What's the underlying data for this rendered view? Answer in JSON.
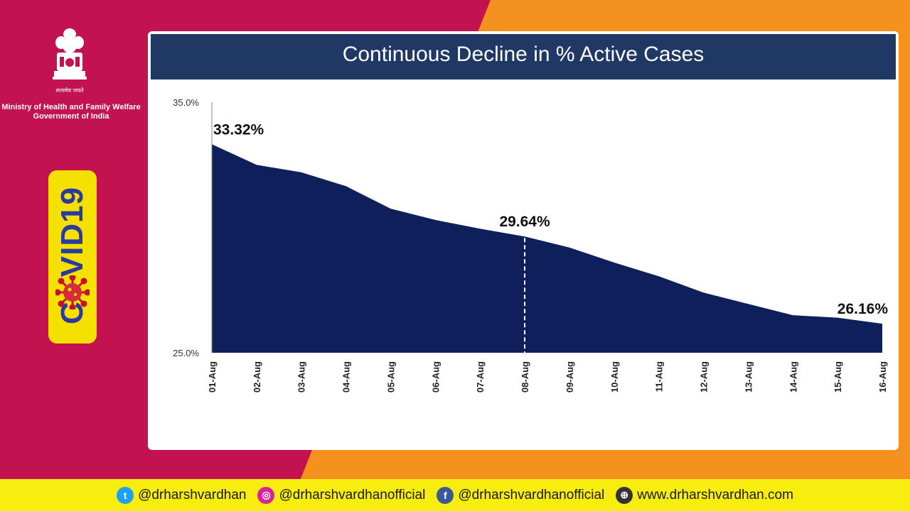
{
  "colors": {
    "magenta": "#c2124f",
    "orange": "#f5911f",
    "navy": "#0f1f5c",
    "header": "#203864",
    "footer": "#f7ed0f"
  },
  "header": {
    "motto": "सत्यमेव जयते",
    "ministry_line1": "Ministry of Health and Family Welfare",
    "ministry_line2": "Government of India"
  },
  "badge": {
    "text_left": "C",
    "text_right": "VID19"
  },
  "chart_data": {
    "type": "area",
    "title": "Continuous Decline in % Active Cases",
    "categories": [
      "01-Aug",
      "02-Aug",
      "03-Aug",
      "04-Aug",
      "05-Aug",
      "06-Aug",
      "07-Aug",
      "08-Aug",
      "09-Aug",
      "10-Aug",
      "11-Aug",
      "12-Aug",
      "13-Aug",
      "14-Aug",
      "15-Aug",
      "16-Aug"
    ],
    "values": [
      33.32,
      32.5,
      32.2,
      31.65,
      30.75,
      30.3,
      29.95,
      29.64,
      29.2,
      28.6,
      28.05,
      27.4,
      26.95,
      26.5,
      26.4,
      26.16
    ],
    "ylim": [
      25.0,
      35.0
    ],
    "ytick_labels": [
      "25.0%",
      "35.0%"
    ],
    "annotations": [
      {
        "index": 0,
        "label": "33.32%"
      },
      {
        "index": 7,
        "label": "29.64%"
      },
      {
        "index": 15,
        "label": "26.16%"
      }
    ],
    "marker_index": 7,
    "xlabel": "",
    "ylabel": ""
  },
  "footer": {
    "twitter": "@drharshvardhan",
    "instagram": "@drharshvardhanofficial",
    "facebook": "@drharshvardhanofficial",
    "website": "www.drharshvardhan.com"
  }
}
